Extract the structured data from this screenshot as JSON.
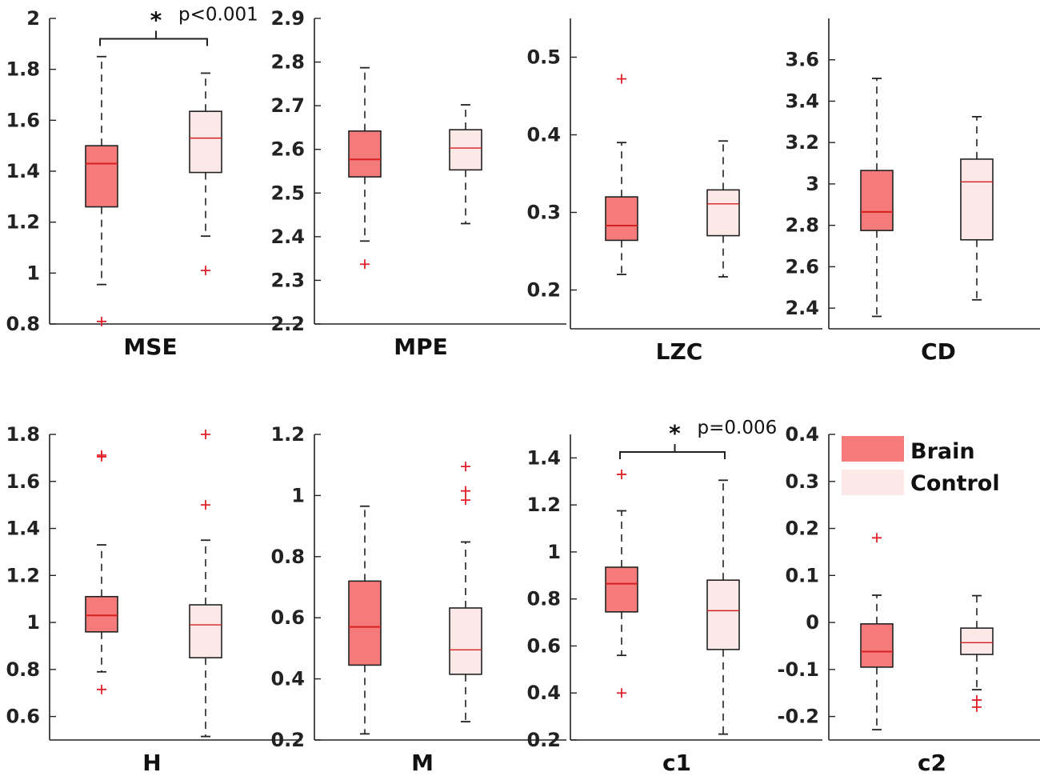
{
  "colors": {
    "brain_fill": "#f57b7b",
    "control_fill": "#fde8e8",
    "box_edge": "#222222",
    "median_line": "#d42020",
    "outlier": "#e0202a",
    "axis": "#222222"
  },
  "legend": {
    "placement": "top-right of c2 panel",
    "entries": [
      "Brain",
      "Control"
    ]
  },
  "chart_data": [
    {
      "type": "boxplot",
      "title": "MSE",
      "ylim": [
        0.8,
        2.0
      ],
      "yticks": [
        0.8,
        1,
        1.2,
        1.4,
        1.6,
        1.8,
        2
      ],
      "ytick_labels": [
        "0.8",
        "1",
        "1.2",
        "1.4",
        "1.6",
        "1.8",
        "2"
      ],
      "groups": [
        {
          "name": "Brain",
          "q1": 1.26,
          "median": 1.43,
          "q3": 1.5,
          "whisker_low": 0.955,
          "whisker_high": 1.85,
          "outliers": [
            0.81
          ]
        },
        {
          "name": "Control",
          "q1": 1.395,
          "median": 1.53,
          "q3": 1.635,
          "whisker_low": 1.145,
          "whisker_high": 1.785,
          "outliers": [
            1.01
          ]
        }
      ],
      "significance": {
        "star": "*",
        "label": "p<0.001",
        "y": 1.92
      }
    },
    {
      "type": "boxplot",
      "title": "MPE",
      "ylim": [
        2.2,
        2.9
      ],
      "yticks": [
        2.2,
        2.3,
        2.4,
        2.5,
        2.6,
        2.7,
        2.8,
        2.9
      ],
      "ytick_labels": [
        "2.2",
        "2.3",
        "2.4",
        "2.5",
        "2.6",
        "2.7",
        "2.8",
        "2.9"
      ],
      "groups": [
        {
          "name": "Brain",
          "q1": 2.537,
          "median": 2.577,
          "q3": 2.642,
          "whisker_low": 2.39,
          "whisker_high": 2.787,
          "outliers": [
            2.337
          ]
        },
        {
          "name": "Control",
          "q1": 2.553,
          "median": 2.603,
          "q3": 2.645,
          "whisker_low": 2.43,
          "whisker_high": 2.702,
          "outliers": []
        }
      ]
    },
    {
      "type": "boxplot",
      "title": "LZC",
      "ylim": [
        0.15,
        0.55
      ],
      "yticks": [
        0.2,
        0.3,
        0.4,
        0.5
      ],
      "ytick_labels": [
        "0.2",
        "0.3",
        "0.4",
        "0.5"
      ],
      "groups": [
        {
          "name": "Brain",
          "q1": 0.264,
          "median": 0.283,
          "q3": 0.32,
          "whisker_low": 0.22,
          "whisker_high": 0.39,
          "outliers": [
            0.472
          ]
        },
        {
          "name": "Control",
          "q1": 0.27,
          "median": 0.311,
          "q3": 0.329,
          "whisker_low": 0.217,
          "whisker_high": 0.392,
          "outliers": []
        }
      ]
    },
    {
      "type": "boxplot",
      "title": "CD",
      "ylim": [
        2.3,
        3.8
      ],
      "yticks": [
        2.4,
        2.6,
        2.8,
        3,
        3.2,
        3.4,
        3.6
      ],
      "ytick_labels": [
        "2.4",
        "2.6",
        "2.8",
        "3",
        "3.2",
        "3.4",
        "3.6"
      ],
      "groups": [
        {
          "name": "Brain",
          "q1": 2.775,
          "median": 2.865,
          "q3": 3.065,
          "whisker_low": 2.36,
          "whisker_high": 3.51,
          "outliers": []
        },
        {
          "name": "Control",
          "q1": 2.73,
          "median": 3.01,
          "q3": 3.12,
          "whisker_low": 2.44,
          "whisker_high": 3.325,
          "outliers": []
        }
      ]
    },
    {
      "type": "boxplot",
      "title": "H",
      "ylim": [
        0.5,
        1.8
      ],
      "yticks": [
        0.6,
        0.8,
        1,
        1.2,
        1.4,
        1.6,
        1.8
      ],
      "ytick_labels": [
        "0.6",
        "0.8",
        "1",
        "1.2",
        "1.4",
        "1.6",
        "1.8"
      ],
      "groups": [
        {
          "name": "Brain",
          "q1": 0.96,
          "median": 1.03,
          "q3": 1.11,
          "whisker_low": 0.79,
          "whisker_high": 1.33,
          "outliers": [
            0.715,
            1.705,
            1.712
          ]
        },
        {
          "name": "Control",
          "q1": 0.85,
          "median": 0.99,
          "q3": 1.075,
          "whisker_low": 0.515,
          "whisker_high": 1.35,
          "outliers": [
            1.5,
            1.8
          ]
        }
      ]
    },
    {
      "type": "boxplot",
      "title": "M",
      "ylim": [
        0.2,
        1.2
      ],
      "yticks": [
        0.2,
        0.4,
        0.6,
        0.8,
        1,
        1.2
      ],
      "ytick_labels": [
        "0.2",
        "0.4",
        "0.6",
        "0.8",
        "1",
        "1.2"
      ],
      "groups": [
        {
          "name": "Brain",
          "q1": 0.445,
          "median": 0.57,
          "q3": 0.72,
          "whisker_low": 0.22,
          "whisker_high": 0.965,
          "outliers": []
        },
        {
          "name": "Control",
          "q1": 0.415,
          "median": 0.495,
          "q3": 0.632,
          "whisker_low": 0.26,
          "whisker_high": 0.848,
          "outliers": [
            0.985,
            1.015,
            1.095
          ]
        }
      ]
    },
    {
      "type": "boxplot",
      "title": "c1",
      "ylim": [
        0.2,
        1.5
      ],
      "yticks": [
        0.2,
        0.4,
        0.6,
        0.8,
        1,
        1.2,
        1.4
      ],
      "ytick_labels": [
        "0.2",
        "0.4",
        "0.6",
        "0.8",
        "1",
        "1.2",
        "1.4"
      ],
      "groups": [
        {
          "name": "Brain",
          "q1": 0.745,
          "median": 0.865,
          "q3": 0.935,
          "whisker_low": 0.56,
          "whisker_high": 1.175,
          "outliers": [
            0.4,
            1.33
          ]
        },
        {
          "name": "Control",
          "q1": 0.585,
          "median": 0.75,
          "q3": 0.88,
          "whisker_low": 0.225,
          "whisker_high": 1.305,
          "outliers": []
        }
      ],
      "significance": {
        "star": "*",
        "label": "p=0.006",
        "y": 1.425
      }
    },
    {
      "type": "boxplot",
      "title": "c2",
      "ylim": [
        -0.25,
        0.4
      ],
      "yticks": [
        -0.2,
        -0.1,
        0,
        0.1,
        0.2,
        0.3,
        0.4
      ],
      "ytick_labels": [
        "-0.2",
        "-0.1",
        "0",
        "0.1",
        "0.2",
        "0.3",
        "0.4"
      ],
      "groups": [
        {
          "name": "Brain",
          "q1": -0.095,
          "median": -0.062,
          "q3": -0.003,
          "whisker_low": -0.228,
          "whisker_high": 0.058,
          "outliers": [
            0.18
          ]
        },
        {
          "name": "Control",
          "q1": -0.068,
          "median": -0.043,
          "q3": -0.012,
          "whisker_low": -0.143,
          "whisker_high": 0.057,
          "outliers": [
            -0.165,
            -0.18
          ]
        }
      ]
    }
  ]
}
